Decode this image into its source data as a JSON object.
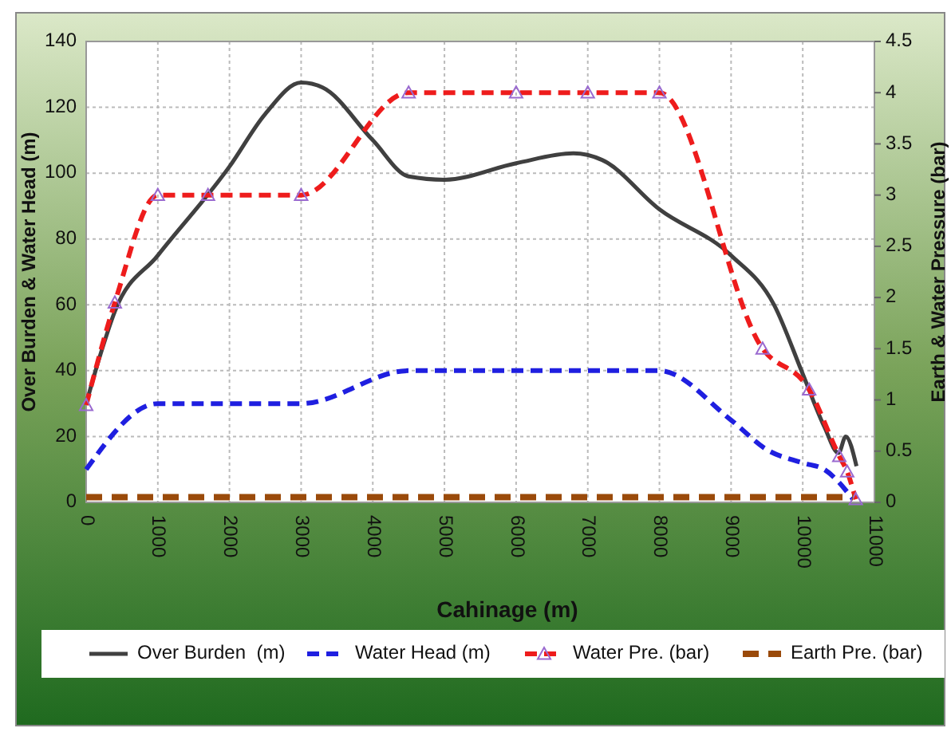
{
  "chart_data": {
    "type": "line",
    "xlabel": "Cahinage (m)",
    "ylabel": "Over Burden & Water Head (m)",
    "y2label": "Earth & Water Pressure (bar)",
    "xlim": [
      0,
      11000
    ],
    "xticks": [
      0,
      1000,
      2000,
      3000,
      4000,
      5000,
      6000,
      7000,
      8000,
      9000,
      10000,
      11000
    ],
    "ylim": [
      0,
      140
    ],
    "yticks": [
      0,
      20,
      40,
      60,
      80,
      100,
      120,
      140
    ],
    "y2lim": [
      0,
      4.5
    ],
    "y2ticks": [
      0,
      0.5,
      1,
      1.5,
      2,
      2.5,
      3,
      3.5,
      4,
      4.5
    ],
    "grid": true,
    "legend": "bottom",
    "series": [
      {
        "name": "Over Burden  (m)",
        "color": "#404040",
        "line_style": "solid",
        "marker": "none",
        "x": [
          0,
          200,
          400,
          1000,
          2000,
          2500,
          3000,
          3300,
          4000,
          4500,
          5000,
          6000,
          6800,
          7200,
          8000,
          9000,
          9600,
          10000,
          10300,
          10500,
          10600,
          10750
        ],
        "values": [
          30,
          45,
          58,
          75,
          102,
          118,
          127.5,
          126,
          110,
          99,
          98,
          103,
          106,
          104,
          89,
          75,
          60,
          39,
          23,
          15,
          20,
          11
        ]
      },
      {
        "name": "Water Head (m)",
        "color": "#1f1fe0",
        "line_style": "dashed",
        "marker": "none",
        "x": [
          0,
          1000,
          3000,
          4500,
          8000,
          9000,
          9500,
          10000,
          10300,
          10700
        ],
        "values": [
          10,
          30,
          30,
          40,
          40,
          25,
          16,
          12,
          10,
          1
        ]
      },
      {
        "name": "Water Pre. (bar)",
        "color": "#ee1c1c",
        "line_style": "dashed",
        "marker": "triangle",
        "axis": "y2",
        "x": [
          0,
          400,
          1000,
          1700,
          3000,
          4500,
          6000,
          7000,
          8000,
          9440,
          10090,
          10510,
          10620,
          10740
        ],
        "values": [
          0.95,
          1.95,
          3,
          3,
          3,
          4,
          4,
          4,
          4,
          1.5,
          1.1,
          0.45,
          0.3,
          0.03
        ]
      },
      {
        "name": "Earth Pre. (bar)",
        "color": "#9a4a0a",
        "line_style": "dashed",
        "marker": "none",
        "axis": "y2",
        "x": [
          0,
          10700
        ],
        "values": [
          0.05,
          0.05
        ]
      }
    ]
  }
}
